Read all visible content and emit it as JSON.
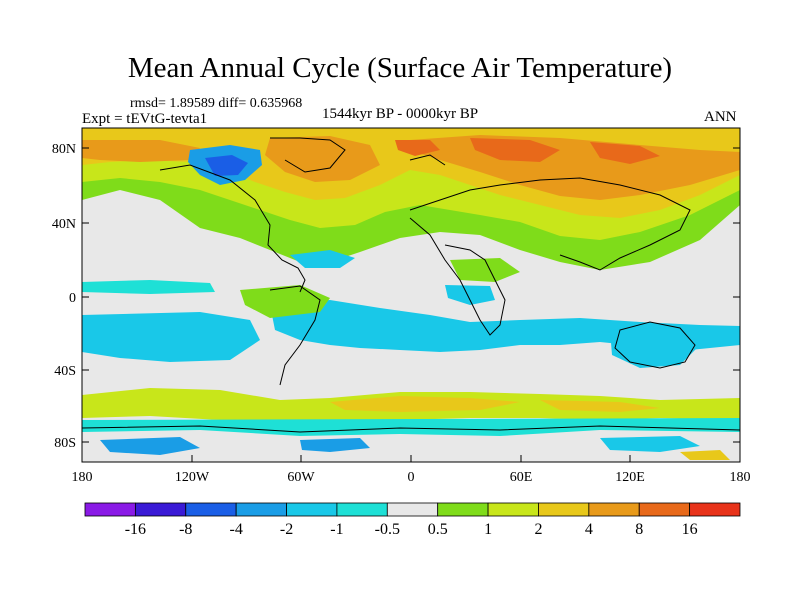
{
  "title": "Mean Annual Cycle (Surface Air Temperature)",
  "stats_text": "rmsd= 1.89589 diff= 0.635968",
  "experiment_text": "Expt = tEVtG-tevta1",
  "period_text": "1544kyr BP - 0000kyr BP",
  "season_text": "ANN",
  "map": {
    "lat_labels": [
      "80N",
      "40N",
      "0",
      "40S",
      "80S"
    ],
    "lon_labels": [
      "180",
      "120W",
      "60W",
      "0",
      "60E",
      "120E",
      "180"
    ]
  },
  "colorbar": {
    "labels": [
      "-16",
      "-8",
      "-4",
      "-2",
      "-1",
      "-0.5",
      "0.5",
      "1",
      "2",
      "4",
      "8",
      "16"
    ],
    "colors": [
      "#8a1ae6",
      "#3a1ad6",
      "#1a5ee6",
      "#1a9de6",
      "#19c8e8",
      "#1ee0d6",
      "#e8e8e8",
      "#7fdc1a",
      "#c8e61a",
      "#e8c81a",
      "#e89a1a",
      "#e8691a",
      "#e8331a"
    ]
  }
}
